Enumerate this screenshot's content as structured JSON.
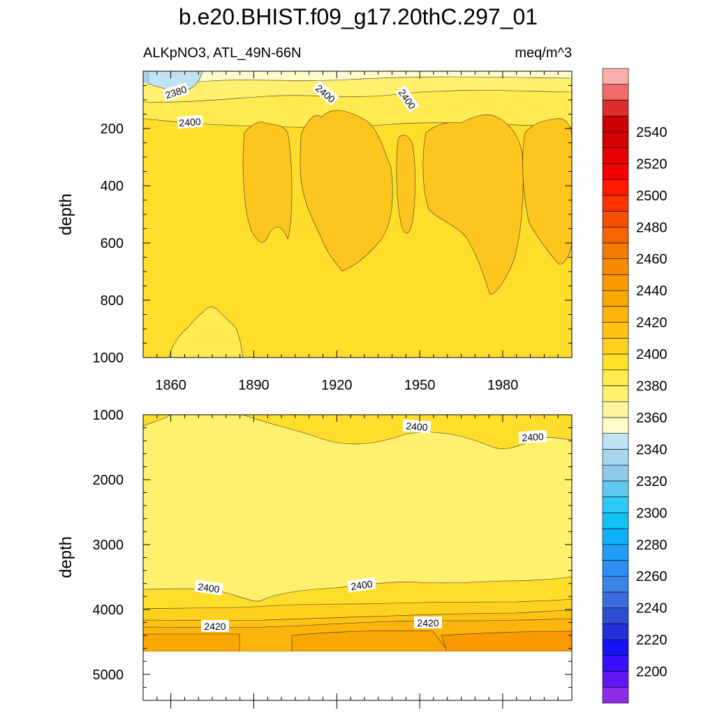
{
  "title": "b.e20.BHIST.f09_g17.20thC.297_01",
  "subtitle_left": "ALKpNO3, ATL_49N-66N",
  "subtitle_right": "meq/m^3",
  "chart_data": [
    {
      "type": "heatmap",
      "panel": "upper",
      "ylabel": "depth",
      "ylim": [
        1000,
        0
      ],
      "yticks": [
        200,
        400,
        600,
        800,
        1000
      ],
      "xlim": [
        1850,
        2005
      ],
      "xticks": [
        1860,
        1890,
        1920,
        1950,
        1980
      ],
      "contour_labels": [
        "2380",
        "2400",
        "2400",
        "2400"
      ],
      "regions": [
        {
          "name": "surface-minimum",
          "value_range": [
            2360,
            2370
          ]
        },
        {
          "name": "near-surface",
          "value_range": [
            2380,
            2390
          ]
        },
        {
          "name": "upper-background",
          "value_range": [
            2400,
            2410
          ]
        },
        {
          "name": "mid-depth-maxima",
          "value_range": [
            2410,
            2420
          ]
        },
        {
          "name": "deep-minimum-1875",
          "value_range": [
            2390,
            2400
          ]
        }
      ]
    },
    {
      "type": "heatmap",
      "panel": "lower",
      "ylabel": "depth",
      "ylim": [
        5400,
        1000
      ],
      "yticks": [
        1000,
        2000,
        3000,
        4000,
        5000
      ],
      "xlim": [
        1850,
        2005
      ],
      "contour_labels": [
        "2400",
        "2400",
        "2400",
        "2400",
        "2420",
        "2420"
      ],
      "regions": [
        {
          "name": "intermediate",
          "value_range": [
            2390,
            2400
          ]
        },
        {
          "name": "deep",
          "value_range": [
            2400,
            2410
          ]
        },
        {
          "name": "near-bottom",
          "value_range": [
            2420,
            2430
          ]
        },
        {
          "name": "bottom",
          "value_range": [
            2430,
            2450
          ]
        }
      ]
    }
  ],
  "colorbar": {
    "labels": [
      "2200",
      "2220",
      "2240",
      "2260",
      "2280",
      "2300",
      "2320",
      "2340",
      "2360",
      "2380",
      "2400",
      "2420",
      "2440",
      "2460",
      "2480",
      "2500",
      "2520",
      "2540"
    ],
    "colors": [
      "#8c2ce8",
      "#6516f5",
      "#3b0ffc",
      "#1414f5",
      "#2231dc",
      "#2e4ed0",
      "#3b6cde",
      "#3d82e6",
      "#2b8ff2",
      "#1e9ef7",
      "#0fb0fa",
      "#12c2f7",
      "#2dc8f5",
      "#60c8f0",
      "#8ec9ea",
      "#a6d6ee",
      "#bfe3f1",
      "#fffbca",
      "#fff4a0",
      "#fff06d",
      "#ffea4f",
      "#ffe02b",
      "#fed11e",
      "#fdc313",
      "#fbb50c",
      "#f9a702",
      "#f99a00",
      "#f78b00",
      "#f57a00",
      "#f46500",
      "#f44e00",
      "#ff3200",
      "#ff1a00",
      "#f70000",
      "#e70000",
      "#d60000",
      "#cc0000",
      "#dd2d2d",
      "#ef6a6a",
      "#fbaeae"
    ]
  }
}
